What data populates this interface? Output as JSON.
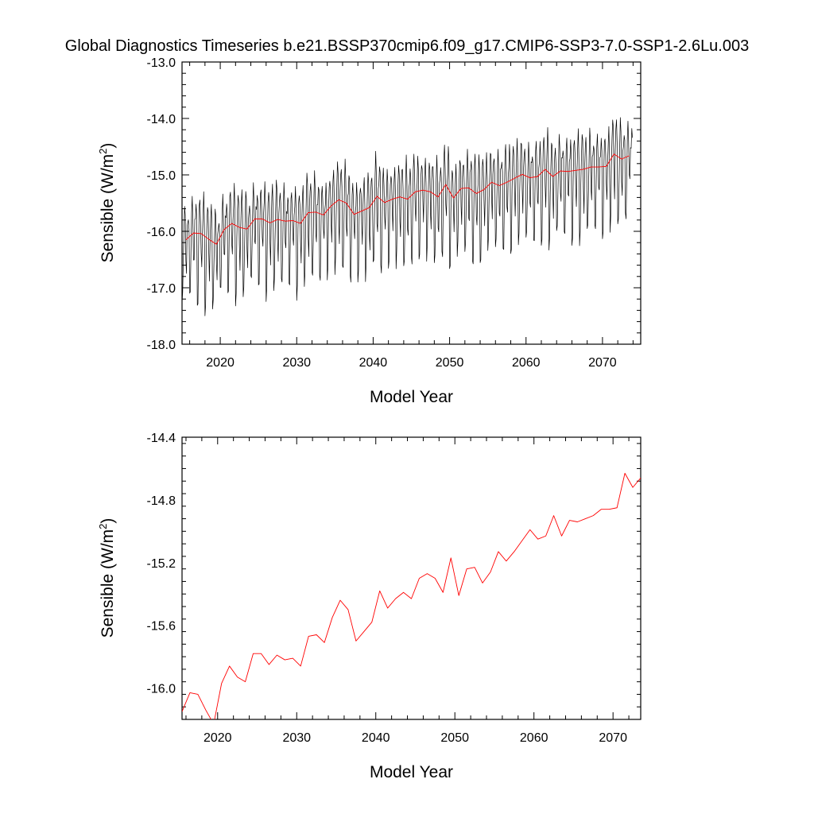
{
  "figure": {
    "title": "Global Diagnostics Timeseries b.e21.BSSP370cmip6.f09_g17.CMIP6-SSP3-7.0-SSP1-2.6Lu.003"
  },
  "chart_data": [
    {
      "type": "line",
      "xlabel": "Model Year",
      "ylabel": "Sensible (W/m2)",
      "ylabel_main": "Sensible (W/m",
      "ylabel_sup": "2",
      "ylabel_close": ")",
      "xlim": [
        2015,
        2075
      ],
      "ylim": [
        -18.0,
        -13.0
      ],
      "x_ticks": [
        2020,
        2030,
        2040,
        2050,
        2060,
        2070
      ],
      "x_tick_labels": [
        "2020",
        "2030",
        "2040",
        "2050",
        "2060",
        "2070"
      ],
      "y_ticks": [
        -18.0,
        -17.0,
        -16.0,
        -15.0,
        -14.0,
        -13.0
      ],
      "y_tick_labels": [
        "-18.0",
        "-17.0",
        "-16.0",
        "-15.0",
        "-14.0",
        "-13.0"
      ],
      "grid": false,
      "legend": "none",
      "series": [
        {
          "kind": "monthly",
          "color": "#000000",
          "x_start": 2015.0,
          "x_step": 0.083333,
          "annual_mean": [
            -16.15,
            -16.03,
            -16.04,
            -16.14,
            -16.23,
            -15.97,
            -15.86,
            -15.93,
            -15.96,
            -15.78,
            -15.78,
            -15.85,
            -15.79,
            -15.82,
            -15.81,
            -15.86,
            -15.67,
            -15.66,
            -15.71,
            -15.55,
            -15.44,
            -15.5,
            -15.7,
            -15.64,
            -15.58,
            -15.38,
            -15.49,
            -15.43,
            -15.39,
            -15.43,
            -15.3,
            -15.27,
            -15.3,
            -15.39,
            -15.17,
            -15.41,
            -15.24,
            -15.23,
            -15.33,
            -15.26,
            -15.13,
            -15.19,
            -15.13,
            -15.06,
            -14.99,
            -15.05,
            -15.03,
            -14.9,
            -15.03,
            -14.93,
            -14.94,
            -14.92,
            -14.9,
            -14.86,
            -14.86,
            -14.85,
            -14.63,
            -14.72,
            -14.66
          ],
          "monthly_anomaly": [
            -1.2,
            -1.1,
            -0.3,
            0.3,
            0.6,
            0.35,
            -0.35,
            -0.6,
            0.1,
            0.3,
            0.55,
            0.25
          ]
        },
        {
          "kind": "annual",
          "color": "#ff0000",
          "x": [
            2015.5,
            2016.5,
            2017.5,
            2018.5,
            2019.5,
            2020.5,
            2021.5,
            2022.5,
            2023.5,
            2024.5,
            2025.5,
            2026.5,
            2027.5,
            2028.5,
            2029.5,
            2030.5,
            2031.5,
            2032.5,
            2033.5,
            2034.5,
            2035.5,
            2036.5,
            2037.5,
            2038.5,
            2039.5,
            2040.5,
            2041.5,
            2042.5,
            2043.5,
            2044.5,
            2045.5,
            2046.5,
            2047.5,
            2048.5,
            2049.5,
            2050.5,
            2051.5,
            2052.5,
            2053.5,
            2054.5,
            2055.5,
            2056.5,
            2057.5,
            2058.5,
            2059.5,
            2060.5,
            2061.5,
            2062.5,
            2063.5,
            2064.5,
            2065.5,
            2066.5,
            2067.5,
            2068.5,
            2069.5,
            2070.5,
            2071.5,
            2072.5,
            2073.5
          ],
          "y": [
            -16.15,
            -16.03,
            -16.04,
            -16.14,
            -16.23,
            -15.97,
            -15.86,
            -15.93,
            -15.96,
            -15.78,
            -15.78,
            -15.85,
            -15.79,
            -15.82,
            -15.81,
            -15.86,
            -15.67,
            -15.66,
            -15.71,
            -15.55,
            -15.44,
            -15.5,
            -15.7,
            -15.64,
            -15.58,
            -15.38,
            -15.49,
            -15.43,
            -15.39,
            -15.43,
            -15.3,
            -15.27,
            -15.3,
            -15.39,
            -15.17,
            -15.41,
            -15.24,
            -15.23,
            -15.33,
            -15.26,
            -15.13,
            -15.19,
            -15.13,
            -15.06,
            -14.99,
            -15.05,
            -15.03,
            -14.9,
            -15.03,
            -14.93,
            -14.94,
            -14.92,
            -14.9,
            -14.86,
            -14.86,
            -14.85,
            -14.63,
            -14.72,
            -14.66
          ]
        }
      ]
    },
    {
      "type": "line",
      "xlabel": "Model Year",
      "ylabel": "Sensible (W/m2)",
      "ylabel_main": "Sensible (W/m",
      "ylabel_sup": "2",
      "ylabel_close": ")",
      "xlim": [
        2015.5,
        2073.5
      ],
      "ylim": [
        -16.2,
        -14.4
      ],
      "x_ticks": [
        2020,
        2030,
        2040,
        2050,
        2060,
        2070
      ],
      "x_tick_labels": [
        "2020",
        "2030",
        "2040",
        "2050",
        "2060",
        "2070"
      ],
      "y_ticks": [
        -16.0,
        -15.6,
        -15.2,
        -14.8,
        -14.4
      ],
      "y_tick_labels": [
        "-16.0",
        "-15.6",
        "-15.2",
        "-14.8",
        "-14.4"
      ],
      "grid": false,
      "legend": "none",
      "series": [
        {
          "kind": "annual",
          "color": "#ff0000",
          "x": [
            2015.5,
            2016.5,
            2017.5,
            2018.5,
            2019.5,
            2020.5,
            2021.5,
            2022.5,
            2023.5,
            2024.5,
            2025.5,
            2026.5,
            2027.5,
            2028.5,
            2029.5,
            2030.5,
            2031.5,
            2032.5,
            2033.5,
            2034.5,
            2035.5,
            2036.5,
            2037.5,
            2038.5,
            2039.5,
            2040.5,
            2041.5,
            2042.5,
            2043.5,
            2044.5,
            2045.5,
            2046.5,
            2047.5,
            2048.5,
            2049.5,
            2050.5,
            2051.5,
            2052.5,
            2053.5,
            2054.5,
            2055.5,
            2056.5,
            2057.5,
            2058.5,
            2059.5,
            2060.5,
            2061.5,
            2062.5,
            2063.5,
            2064.5,
            2065.5,
            2066.5,
            2067.5,
            2068.5,
            2069.5,
            2070.5,
            2071.5,
            2072.5,
            2073.5
          ],
          "y": [
            -16.15,
            -16.03,
            -16.04,
            -16.14,
            -16.23,
            -15.97,
            -15.86,
            -15.93,
            -15.96,
            -15.78,
            -15.78,
            -15.85,
            -15.79,
            -15.82,
            -15.81,
            -15.86,
            -15.67,
            -15.66,
            -15.71,
            -15.55,
            -15.44,
            -15.5,
            -15.7,
            -15.64,
            -15.58,
            -15.38,
            -15.49,
            -15.43,
            -15.39,
            -15.43,
            -15.3,
            -15.27,
            -15.3,
            -15.39,
            -15.17,
            -15.41,
            -15.24,
            -15.23,
            -15.33,
            -15.26,
            -15.13,
            -15.19,
            -15.13,
            -15.06,
            -14.99,
            -15.05,
            -15.03,
            -14.9,
            -15.03,
            -14.93,
            -14.94,
            -14.92,
            -14.9,
            -14.86,
            -14.86,
            -14.85,
            -14.63,
            -14.72,
            -14.66
          ]
        }
      ]
    }
  ]
}
